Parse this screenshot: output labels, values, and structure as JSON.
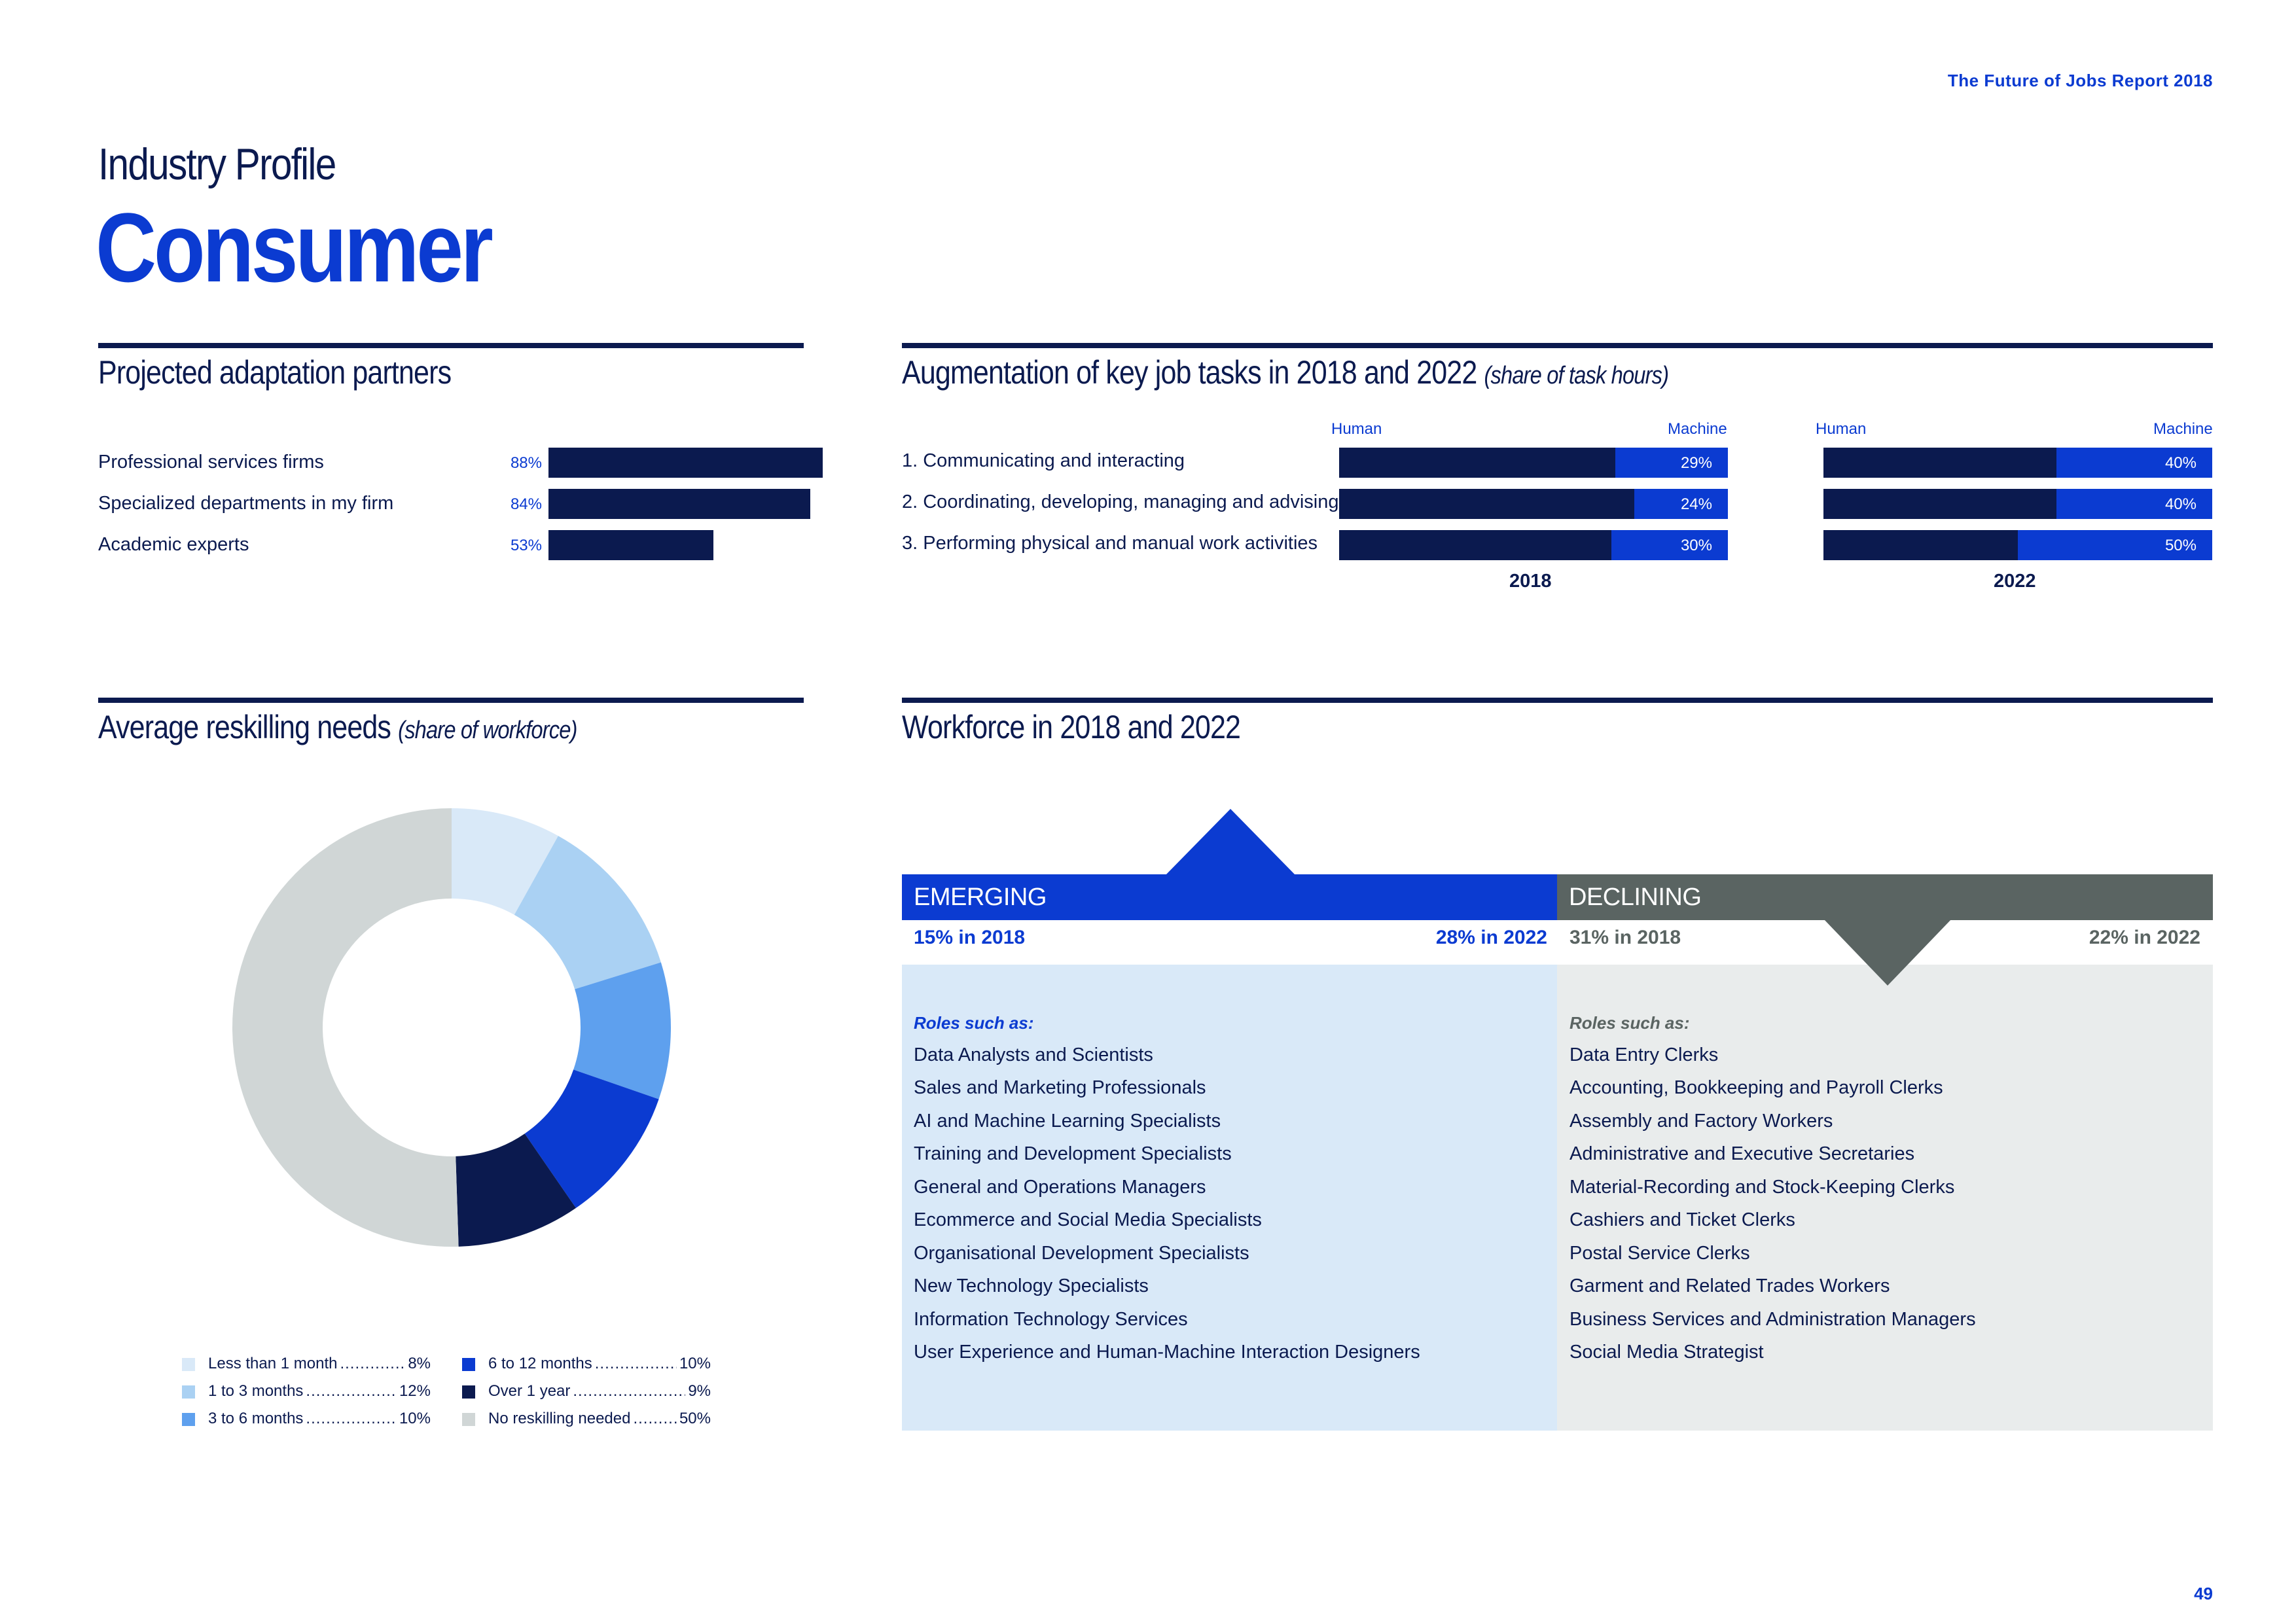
{
  "header": {
    "report_title": "The Future of Jobs Report 2018"
  },
  "page": {
    "kicker": "Industry Profile",
    "title": "Consumer",
    "number": "49"
  },
  "partners": {
    "title": "Projected adaptation partners",
    "items": [
      {
        "label": "Professional services firms",
        "pct": "88%",
        "value": 88
      },
      {
        "label": "Specialized departments in my firm",
        "pct": "84%",
        "value": 84
      },
      {
        "label": "Academic experts",
        "pct": "53%",
        "value": 53
      }
    ]
  },
  "augmentation": {
    "title": "Augmentation of key job tasks in 2018 and 2022",
    "subtitle": "(share of task hours)",
    "human_label": "Human",
    "machine_label": "Machine",
    "years": [
      "2018",
      "2022"
    ],
    "tasks": [
      {
        "label": "1.  Communicating and interacting",
        "machine": [
          "29%",
          "40%"
        ],
        "machine_values": [
          29,
          40
        ]
      },
      {
        "label": "2.  Coordinating, developing, managing and advising",
        "machine": [
          "24%",
          "40%"
        ],
        "machine_values": [
          24,
          40
        ]
      },
      {
        "label": "3.  Performing physical and manual work activities",
        "machine": [
          "30%",
          "50%"
        ],
        "machine_values": [
          30,
          50
        ]
      }
    ]
  },
  "reskilling": {
    "title": "Average reskilling needs",
    "subtitle": "(share of workforce)",
    "segments": [
      {
        "label": "Less than 1 month",
        "pct": "8%",
        "value": 8,
        "color": "#d9e9f8"
      },
      {
        "label": "1 to 3 months",
        "pct": "12%",
        "value": 12,
        "color": "#aad1f3"
      },
      {
        "label": "3 to 6 months",
        "pct": "10%",
        "value": 10,
        "color": "#5ea0ee"
      },
      {
        "label": "6 to 12 months",
        "pct": "10%",
        "value": 10,
        "color": "#0b3bd1"
      },
      {
        "label": "Over 1 year",
        "pct": "9%",
        "value": 9,
        "color": "#0b1a4f"
      },
      {
        "label": "No reskilling needed",
        "pct": "50%",
        "value": 50,
        "color": "#d0d6d6"
      }
    ]
  },
  "workforce": {
    "title": "Workforce in 2018 and 2022",
    "emerging": {
      "label": "EMERGING",
      "stat_2018": "15% in 2018",
      "stat_2022": "28% in 2022",
      "roles_label": "Roles such as:",
      "roles": [
        "Data Analysts and Scientists",
        "Sales and Marketing Professionals",
        "AI and Machine Learning Specialists",
        "Training and Development Specialists",
        "General and Operations Managers",
        "Ecommerce and Social Media Specialists",
        "Organisational Development Specialists",
        "New Technology Specialists",
        "Information Technology Services",
        "User Experience and Human-Machine Interaction Designers"
      ]
    },
    "declining": {
      "label": "DECLINING",
      "stat_2018": "31% in 2018",
      "stat_2022": "22% in 2022",
      "roles_label": "Roles such as:",
      "roles": [
        "Data Entry Clerks",
        "Accounting,  Bookkeeping and Payroll Clerks",
        "Assembly and Factory Workers",
        "Administrative and Executive Secretaries",
        "Material-Recording and Stock-Keeping Clerks",
        "Cashiers and Ticket Clerks",
        "Postal Service Clerks",
        "Garment and Related Trades Workers",
        "Business Services and Administration Managers",
        "Social Media Strategist"
      ]
    }
  }
}
